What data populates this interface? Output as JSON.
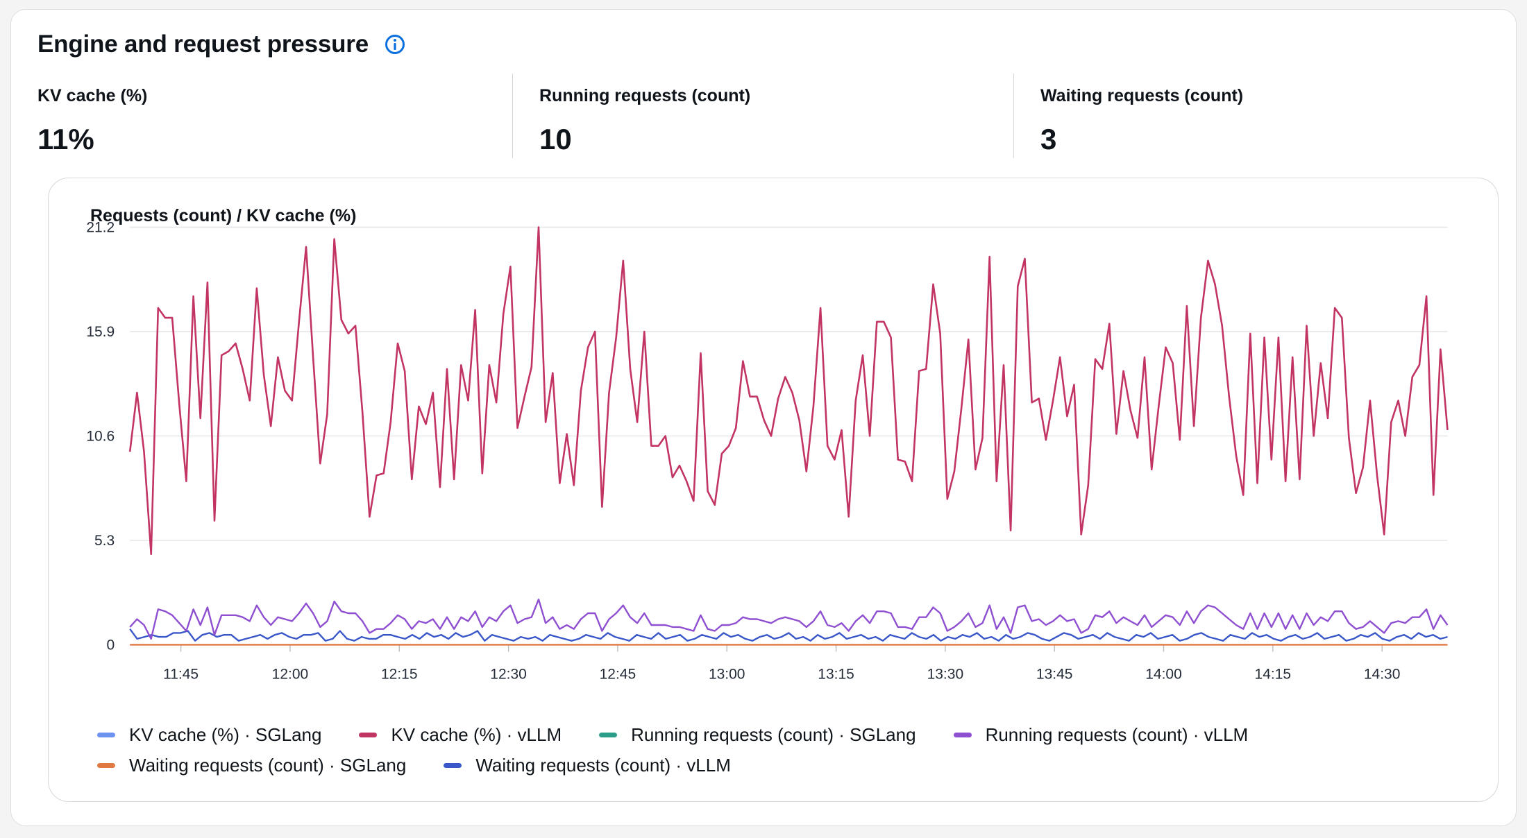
{
  "panel": {
    "title": "Engine and request pressure",
    "info_icon": "info-circle-icon"
  },
  "kpis": [
    {
      "label": "KV cache (%)",
      "value": "11%"
    },
    {
      "label": "Running requests (count)",
      "value": "10"
    },
    {
      "label": "Waiting requests (count)",
      "value": "3"
    }
  ],
  "chart_data": {
    "type": "line",
    "title": "Requests (count) / KV cache (%)",
    "ylim": [
      0,
      21.2
    ],
    "y_ticks": [
      "0",
      "5.3",
      "10.6",
      "15.9",
      "21.2"
    ],
    "x_range_minutes": [
      698,
      879
    ],
    "x_ticks": [
      {
        "label": "11:45",
        "minute": 705
      },
      {
        "label": "12:00",
        "minute": 720
      },
      {
        "label": "12:15",
        "minute": 735
      },
      {
        "label": "12:30",
        "minute": 750
      },
      {
        "label": "12:45",
        "minute": 765
      },
      {
        "label": "13:00",
        "minute": 780
      },
      {
        "label": "13:15",
        "minute": 795
      },
      {
        "label": "13:30",
        "minute": 810
      },
      {
        "label": "13:45",
        "minute": 825
      },
      {
        "label": "14:00",
        "minute": 840
      },
      {
        "label": "14:15",
        "minute": 855
      },
      {
        "label": "14:30",
        "minute": 870
      }
    ],
    "grid": true,
    "legend_position": "bottom",
    "series": [
      {
        "name": "KV cache (%) · SGLang",
        "color": "#6d92f0",
        "values": []
      },
      {
        "name": "KV cache (%) · vLLM",
        "color": "#c23461",
        "values": [
          9.8,
          12.8,
          9.8,
          4.6,
          17.1,
          16.6,
          16.6,
          12.2,
          8.3,
          17.7,
          11.5,
          18.4,
          6.3,
          14.7,
          14.9,
          15.3,
          14.0,
          12.4,
          18.1,
          13.7,
          11.1,
          14.6,
          12.9,
          12.4,
          16.4,
          20.2,
          14.6,
          9.2,
          11.7,
          20.6,
          16.5,
          15.8,
          16.2,
          11.8,
          6.5,
          8.6,
          8.7,
          11.3,
          15.3,
          13.9,
          8.4,
          12.1,
          11.2,
          12.8,
          8.0,
          14.0,
          8.4,
          14.2,
          12.4,
          17.0,
          8.7,
          14.2,
          12.3,
          16.8,
          19.2,
          11.0,
          12.6,
          14.1,
          21.2,
          11.3,
          13.8,
          8.2,
          10.7,
          8.1,
          12.9,
          15.1,
          15.9,
          7.0,
          12.8,
          15.6,
          19.5,
          14.0,
          11.3,
          15.9,
          10.1,
          10.1,
          10.6,
          8.5,
          9.1,
          8.3,
          7.3,
          14.8,
          7.8,
          7.1,
          9.7,
          10.1,
          11.0,
          14.4,
          12.6,
          12.6,
          11.4,
          10.6,
          12.5,
          13.6,
          12.8,
          11.4,
          8.8,
          12.1,
          17.1,
          10.1,
          9.4,
          10.9,
          6.5,
          12.4,
          14.7,
          10.6,
          16.4,
          16.4,
          15.6,
          9.4,
          9.3,
          8.3,
          13.9,
          14.0,
          18.3,
          15.8,
          7.4,
          8.8,
          12.0,
          15.5,
          8.9,
          10.5,
          19.7,
          8.3,
          14.2,
          5.8,
          18.2,
          19.6,
          12.3,
          12.5,
          10.4,
          12.4,
          14.6,
          11.6,
          13.2,
          5.6,
          8.1,
          14.5,
          14.0,
          16.3,
          10.7,
          13.9,
          11.9,
          10.5,
          14.6,
          8.9,
          12.1,
          15.1,
          14.3,
          10.4,
          17.2,
          11.1,
          16.6,
          19.5,
          18.3,
          16.2,
          12.6,
          9.6,
          7.6,
          15.8,
          8.2,
          15.6,
          9.4,
          15.6,
          8.3,
          14.6,
          8.4,
          16.2,
          10.6,
          14.3,
          11.5,
          17.1,
          16.6,
          10.5,
          7.7,
          9.0,
          12.4,
          8.6,
          5.6,
          11.3,
          12.4,
          10.6,
          13.6,
          14.2,
          17.7,
          7.6,
          15.0,
          10.9
        ]
      },
      {
        "name": "Running requests (count) · SGLang",
        "color": "#2b9e8a",
        "values": []
      },
      {
        "name": "Running requests (count) · vLLM",
        "color": "#8f4fd1",
        "values": [
          0.9,
          1.3,
          1.0,
          0.3,
          1.8,
          1.7,
          1.5,
          1.1,
          0.7,
          1.8,
          1.0,
          1.9,
          0.5,
          1.5,
          1.5,
          1.5,
          1.4,
          1.2,
          2.0,
          1.4,
          1.0,
          1.4,
          1.3,
          1.2,
          1.6,
          2.1,
          1.6,
          0.9,
          1.2,
          2.2,
          1.7,
          1.6,
          1.6,
          1.2,
          0.6,
          0.8,
          0.8,
          1.1,
          1.5,
          1.3,
          0.8,
          1.2,
          1.1,
          1.3,
          0.8,
          1.4,
          0.8,
          1.4,
          1.2,
          1.7,
          0.9,
          1.4,
          1.2,
          1.7,
          2.0,
          1.1,
          1.3,
          1.4,
          2.3,
          1.1,
          1.4,
          0.8,
          1.0,
          0.8,
          1.3,
          1.6,
          1.6,
          0.7,
          1.3,
          1.6,
          2.0,
          1.4,
          1.1,
          1.6,
          1.0,
          1.0,
          1.0,
          0.9,
          0.9,
          0.8,
          0.7,
          1.5,
          0.8,
          0.7,
          1.0,
          1.0,
          1.1,
          1.4,
          1.3,
          1.3,
          1.2,
          1.1,
          1.3,
          1.4,
          1.3,
          1.2,
          0.9,
          1.2,
          1.7,
          1.0,
          0.9,
          1.1,
          0.7,
          1.2,
          1.5,
          1.1,
          1.7,
          1.7,
          1.6,
          0.9,
          0.9,
          0.8,
          1.4,
          1.4,
          1.9,
          1.6,
          0.7,
          0.9,
          1.2,
          1.6,
          0.9,
          1.1,
          2.0,
          0.8,
          1.4,
          0.6,
          1.9,
          2.0,
          1.2,
          1.3,
          1.0,
          1.2,
          1.5,
          1.2,
          1.3,
          0.6,
          0.8,
          1.5,
          1.4,
          1.7,
          1.1,
          1.4,
          1.2,
          1.0,
          1.5,
          0.9,
          1.2,
          1.5,
          1.4,
          1.0,
          1.7,
          1.1,
          1.7,
          2.0,
          1.9,
          1.6,
          1.3,
          1.0,
          0.8,
          1.6,
          0.8,
          1.6,
          0.9,
          1.6,
          0.8,
          1.5,
          0.8,
          1.6,
          1.0,
          1.4,
          1.2,
          1.7,
          1.7,
          1.1,
          0.8,
          0.9,
          1.2,
          0.9,
          0.6,
          1.1,
          1.2,
          1.1,
          1.4,
          1.4,
          1.8,
          0.8,
          1.5,
          1.0
        ]
      },
      {
        "name": "Waiting requests (count) · SGLang",
        "color": "#e07941",
        "values": [
          0,
          0,
          0,
          0,
          0,
          0,
          0,
          0,
          0,
          0,
          0,
          0,
          0,
          0,
          0,
          0,
          0,
          0,
          0,
          0,
          0,
          0,
          0,
          0,
          0,
          0,
          0,
          0,
          0,
          0,
          0,
          0,
          0,
          0,
          0,
          0,
          0,
          0,
          0,
          0,
          0,
          0,
          0,
          0,
          0,
          0,
          0,
          0,
          0,
          0,
          0,
          0,
          0,
          0,
          0,
          0,
          0,
          0,
          0,
          0,
          0,
          0,
          0,
          0,
          0,
          0,
          0,
          0,
          0,
          0,
          0,
          0,
          0,
          0,
          0,
          0,
          0,
          0,
          0,
          0,
          0,
          0,
          0,
          0,
          0,
          0,
          0,
          0,
          0,
          0,
          0,
          0,
          0,
          0,
          0,
          0,
          0,
          0,
          0,
          0,
          0,
          0,
          0,
          0,
          0,
          0,
          0,
          0,
          0,
          0,
          0,
          0,
          0,
          0,
          0,
          0,
          0,
          0,
          0,
          0,
          0,
          0,
          0,
          0,
          0,
          0,
          0,
          0,
          0,
          0,
          0,
          0,
          0,
          0,
          0,
          0,
          0,
          0,
          0,
          0,
          0,
          0,
          0,
          0,
          0,
          0,
          0,
          0,
          0,
          0,
          0,
          0,
          0,
          0,
          0,
          0,
          0,
          0,
          0,
          0,
          0,
          0,
          0,
          0,
          0,
          0,
          0,
          0,
          0,
          0,
          0,
          0,
          0,
          0,
          0,
          0,
          0,
          0,
          0,
          0,
          0,
          0,
          0
        ]
      },
      {
        "name": "Waiting requests (count) · vLLM",
        "color": "#3a57c9",
        "values": [
          0.8,
          0.3,
          0.4,
          0.5,
          0.4,
          0.4,
          0.6,
          0.6,
          0.7,
          0.2,
          0.5,
          0.6,
          0.4,
          0.5,
          0.5,
          0.2,
          0.3,
          0.4,
          0.5,
          0.3,
          0.5,
          0.6,
          0.4,
          0.3,
          0.5,
          0.5,
          0.6,
          0.2,
          0.3,
          0.7,
          0.3,
          0.2,
          0.4,
          0.3,
          0.3,
          0.5,
          0.5,
          0.4,
          0.3,
          0.5,
          0.3,
          0.6,
          0.4,
          0.5,
          0.3,
          0.6,
          0.4,
          0.5,
          0.7,
          0.2,
          0.5,
          0.4,
          0.3,
          0.2,
          0.4,
          0.3,
          0.4,
          0.2,
          0.5,
          0.4,
          0.3,
          0.2,
          0.3,
          0.5,
          0.4,
          0.3,
          0.6,
          0.4,
          0.3,
          0.2,
          0.5,
          0.4,
          0.3,
          0.6,
          0.3,
          0.4,
          0.5,
          0.2,
          0.3,
          0.5,
          0.4,
          0.3,
          0.6,
          0.4,
          0.5,
          0.3,
          0.2,
          0.4,
          0.5,
          0.3,
          0.4,
          0.6,
          0.3,
          0.4,
          0.2,
          0.5,
          0.3,
          0.4,
          0.6,
          0.3,
          0.4,
          0.5,
          0.3,
          0.4,
          0.2,
          0.5,
          0.4,
          0.3,
          0.6,
          0.4,
          0.3,
          0.5,
          0.2,
          0.4,
          0.3,
          0.5,
          0.4,
          0.6,
          0.3,
          0.4,
          0.2,
          0.5,
          0.3,
          0.4,
          0.6,
          0.5,
          0.3,
          0.2,
          0.4,
          0.6,
          0.5,
          0.3,
          0.4,
          0.5,
          0.3,
          0.6,
          0.4,
          0.3,
          0.2,
          0.5,
          0.4,
          0.6,
          0.3,
          0.4,
          0.5,
          0.2,
          0.3,
          0.5,
          0.6,
          0.4,
          0.3,
          0.2,
          0.5,
          0.4,
          0.3,
          0.6,
          0.4,
          0.5,
          0.3,
          0.2,
          0.4,
          0.5,
          0.3,
          0.4,
          0.6,
          0.3,
          0.4,
          0.5,
          0.2,
          0.3,
          0.5,
          0.4,
          0.6,
          0.3,
          0.2,
          0.4,
          0.5,
          0.3,
          0.6,
          0.4,
          0.5,
          0.3,
          0.4
        ]
      }
    ]
  }
}
